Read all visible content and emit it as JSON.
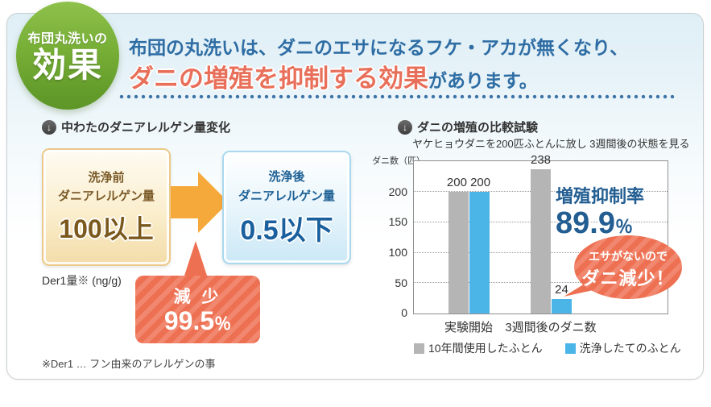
{
  "badge": {
    "top": "布団丸洗いの",
    "main": "効果"
  },
  "header": {
    "line1": "布団の丸洗いは、ダニのエサになるフケ・アカが無くなり、",
    "highlight": "ダニの増殖を抑制する効果",
    "tail": "があります。"
  },
  "allergen_section": {
    "heading": "中わたのダニアレルゲン量変化",
    "before": {
      "line1": "洗浄前",
      "line2": "ダニアレルゲン量",
      "value": "100以上"
    },
    "after": {
      "line1": "洗浄後",
      "line2": "ダニアレルゲン量",
      "value": "0.5以下"
    },
    "unit": "Der1量※ (ng/g)",
    "bubble": {
      "label": "減 少",
      "value": "99.5",
      "percent": "％"
    },
    "note": "※Der1 … フン由来のアレルゲンの事"
  },
  "mite_section": {
    "heading": "ダニの増殖の比較試験",
    "subtitle": "ヤケヒョウダニを200匹ふとんに放し 3週間後の状態を見る",
    "suppression": {
      "label": "増殖抑制率",
      "value": "89.9",
      "percent": "％"
    },
    "bubble": {
      "line1": "エサがないので",
      "line2": "ダニ減少！"
    }
  },
  "colors": {
    "accent_red": "#e8705a",
    "accent_blue": "#2e6da4",
    "bubble_salmon": "#ee7052",
    "arrow_orange": "#f6a93b",
    "badge_green": "#6ea32f"
  },
  "chart_data": {
    "type": "bar",
    "title": "ダニの増殖の比較試験",
    "subtitle": "ヤケヒョウダニを200匹ふとんに放し 3週間後の状態を見る",
    "ylabel": "ダニ数（匹）",
    "xlabel": "",
    "categories": [
      "実験開始",
      "3週間後のダニ数"
    ],
    "series": [
      {
        "name": "10年間使用したふとん",
        "color": "#b5b5b5",
        "values": [
          200,
          238
        ]
      },
      {
        "name": "洗浄したてのふとん",
        "color": "#4cb5e8",
        "values": [
          200,
          24
        ]
      }
    ],
    "yticks": [
      0,
      50,
      100,
      150,
      200
    ],
    "ymax": 251,
    "grid": "horizontal-dotted",
    "legend_position": "bottom",
    "annotations": [
      "増殖抑制率 89.9％",
      "エサがないので ダニ減少！"
    ]
  }
}
